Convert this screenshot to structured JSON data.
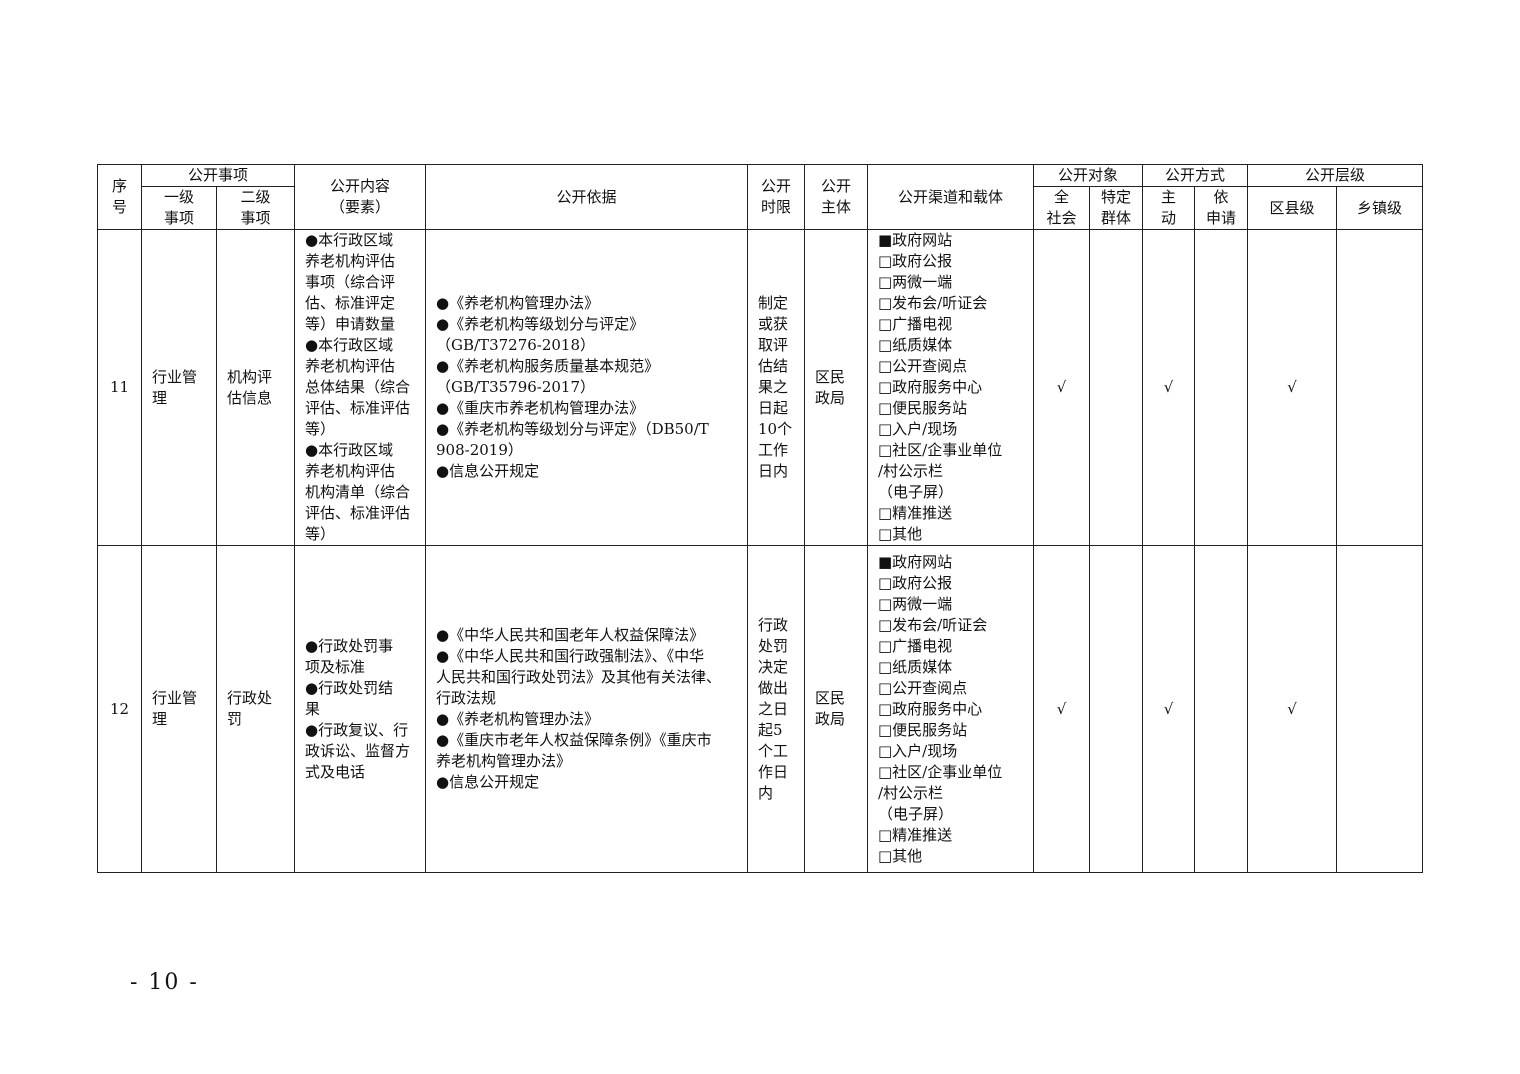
{
  "header": {
    "seq": "序\n号",
    "items_group": "公开事项",
    "level1": "一级\n事项",
    "level2": "二级\n事项",
    "content": "公开内容\n（要素）",
    "basis": "公开依据",
    "time_limit": "公开\n时限",
    "subject": "公开\n主体",
    "channels": "公开渠道和载体",
    "target_group": "公开对象",
    "target_all": "全\n社会",
    "target_specific": "特定\n群体",
    "method_group": "公开方式",
    "method_active": "主\n动",
    "method_request": "依\n申请",
    "level_group": "公开层级",
    "level_county": "区县级",
    "level_town": "乡镇级"
  },
  "rows": [
    {
      "seq": "11",
      "level1": "行业管\n理",
      "level2": "机构评\n估信息",
      "content": "●本行政区域\n养老机构评估\n事项（综合评\n估、标准评定\n等）申请数量\n●本行政区域\n养老机构评估\n总体结果（综合\n评估、标准评估\n等）\n●本行政区域\n养老机构评估\n机构清单（综合\n评估、标准评估\n等）",
      "basis": "●《养老机构管理办法》\n●《养老机构等级划分与评定》\n（GB/T37276-2018）\n●《养老机构服务质量基本规范》\n（GB/T35796-2017）\n●《重庆市养老机构管理办法》\n●《养老机构等级划分与评定》（DB50/T\n908-2019）\n●信息公开规定",
      "time_limit": "制定\n或获\n取评\n估结\n果之\n日起\n10个\n工作\n日内",
      "subject": "区民\n政局",
      "channels": "■政府网站\n□政府公报\n□两微一端\n□发布会/听证会\n□广播电视\n□纸质媒体\n□公开查阅点\n□政府服务中心\n□便民服务站\n□入户/现场\n□社区/企事业单位\n/村公示栏\n（电子屏）\n□精准推送\n□其他",
      "target_all": "√",
      "target_specific": "",
      "method_active": "√",
      "method_request": "",
      "level_county": "√",
      "level_town": ""
    },
    {
      "seq": "12",
      "level1": "行业管\n理",
      "level2": "行政处\n罚",
      "content": "●行政处罚事\n项及标准\n●行政处罚结\n果\n●行政复议、行\n政诉讼、监督方\n式及电话",
      "basis": "●《中华人民共和国老年人权益保障法》\n●《中华人民共和国行政强制法》、《中华\n人民共和国行政处罚法》及其他有关法律、\n行政法规\n●《养老机构管理办法》\n●《重庆市老年人权益保障条例》《重庆市\n养老机构管理办法》\n●信息公开规定",
      "time_limit": "行政\n处罚\n决定\n做出\n之日\n起5\n个工\n作日\n内",
      "subject": "区民\n政局",
      "channels": "■政府网站\n□政府公报\n□两微一端\n□发布会/听证会\n□广播电视\n□纸质媒体\n□公开查阅点\n□政府服务中心\n□便民服务站\n□入户/现场\n□社区/企事业单位\n/村公示栏\n（电子屏）\n□精准推送\n□其他",
      "target_all": "√",
      "target_specific": "",
      "method_active": "√",
      "method_request": "",
      "level_county": "√",
      "level_town": ""
    }
  ],
  "footer": {
    "page_number": "- 10 -"
  }
}
